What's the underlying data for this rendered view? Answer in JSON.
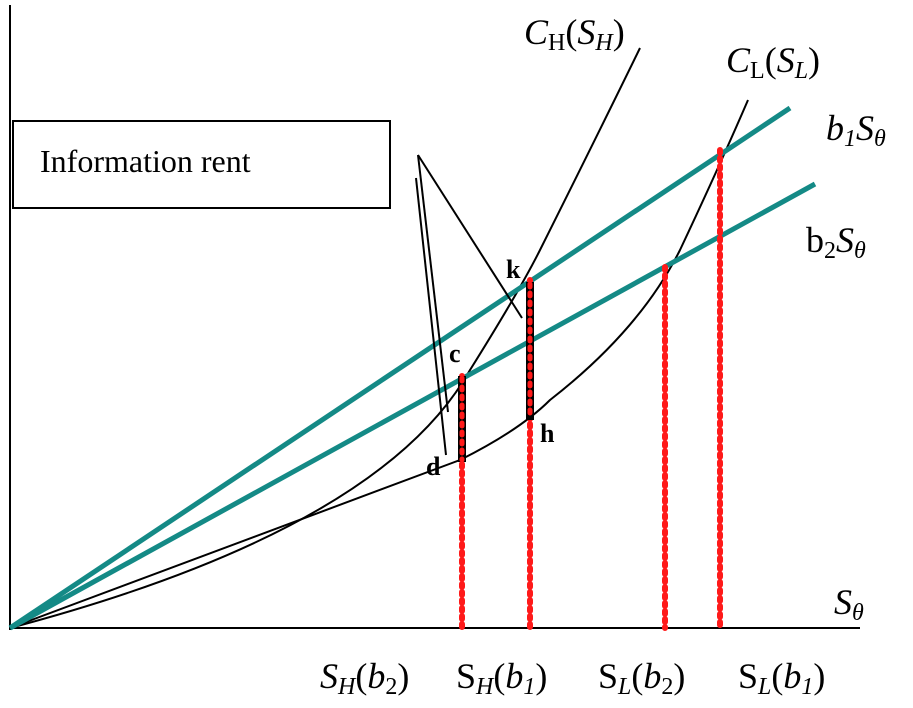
{
  "labels": {
    "ch_curve": {
      "main": "C",
      "sub": "H",
      "open": "(",
      "arg": "S",
      "arg_sub": "H",
      "close": ")"
    },
    "cl_curve": {
      "main": "C",
      "sub": "L",
      "open": "(",
      "arg": "S",
      "arg_sub": "L",
      "close": ")"
    },
    "b1_line": {
      "main": "b",
      "sub": "1",
      "arg": "S",
      "arg_sub": "θ"
    },
    "b2_line": {
      "main": "b",
      "sub": "2",
      "arg": "S",
      "arg_sub": "θ"
    },
    "x_axis": {
      "main": "S",
      "sub": "θ"
    }
  },
  "info_box": {
    "text": "Information rent"
  },
  "points": {
    "k": "k",
    "c": "c",
    "d": "d",
    "h": "h"
  },
  "x_ticks": [
    {
      "main": "S",
      "main_sub": "H",
      "open": "(",
      "arg": "b",
      "arg_sub": "2",
      "close": ")"
    },
    {
      "main": "S",
      "main_sub": "H",
      "open": "(",
      "arg": "b",
      "arg_sub": "1",
      "close": ")"
    },
    {
      "main": "S",
      "main_sub": "L",
      "open": "(",
      "arg": "b",
      "arg_sub": "2",
      "close": ")"
    },
    {
      "main": "S",
      "main_sub": "L",
      "open": "(",
      "arg": "b",
      "arg_sub": "1",
      "close": ")"
    }
  ],
  "colors": {
    "teal_line": "#148a86",
    "dotted_red": "#ff1a1a",
    "rent_bar": "#000000",
    "curves": "#000000"
  }
}
